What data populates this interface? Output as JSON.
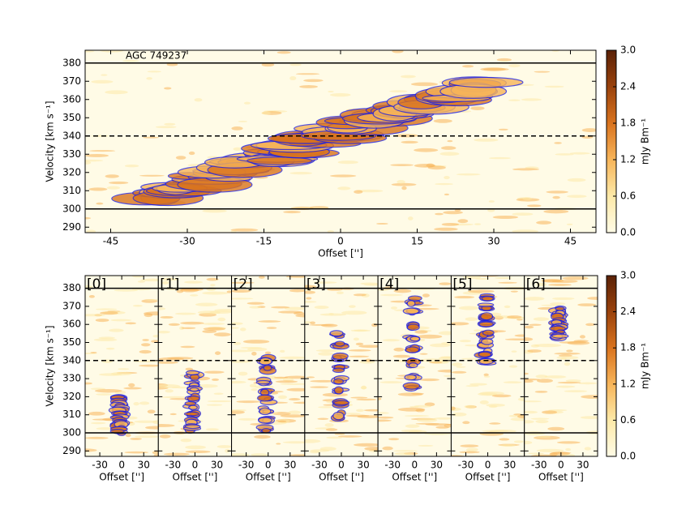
{
  "chart_data": [
    {
      "type": "heatmap",
      "title": "AGC 749237",
      "xlabel": "Offset ['']",
      "ylabel": "Velocity [km s⁻¹]",
      "xlim": [
        -50,
        50
      ],
      "ylim": [
        287,
        387
      ],
      "xticks": [
        -45,
        -30,
        -15,
        0,
        15,
        30,
        45
      ],
      "yticks": [
        290,
        300,
        310,
        320,
        330,
        340,
        350,
        360,
        370,
        380
      ],
      "hlines": [
        {
          "value": 300,
          "style": "solid"
        },
        {
          "value": 340,
          "style": "dashed"
        },
        {
          "value": 380,
          "style": "solid"
        }
      ],
      "colorbar": {
        "label": "mJy Bm⁻¹",
        "lim": [
          0,
          3
        ],
        "colors": [
          "#fffbe6",
          "#fde9a8",
          "#f7b55a",
          "#d9731e",
          "#9a420c",
          "#5a2107"
        ],
        "ticks": [
          {
            "value": 0,
            "label": "0.0"
          },
          0.6,
          1.2,
          1.8,
          2.4,
          {
            "value": 3,
            "label": "3.0"
          }
        ]
      },
      "contour_color": "#2222dd"
    },
    {
      "type": "heatmap_panels",
      "ylabel": "Velocity [km s⁻¹]",
      "ylim": [
        287,
        387
      ],
      "yticks": [
        290,
        300,
        310,
        320,
        330,
        340,
        350,
        360,
        370,
        380
      ],
      "hlines": [
        {
          "value": 300,
          "style": "solid"
        },
        {
          "value": 340,
          "style": "dashed"
        },
        {
          "value": 380,
          "style": "solid"
        }
      ],
      "colorbar": {
        "label": "mJy Bm⁻¹",
        "lim": [
          0,
          3
        ],
        "colors": [
          "#fffbe6",
          "#fde9a8",
          "#f7b55a",
          "#d9731e",
          "#9a420c",
          "#5a2107"
        ],
        "ticks": [
          {
            "value": 0,
            "label": "0.0"
          },
          0.6,
          1.2,
          1.8,
          2.4,
          {
            "value": 3,
            "label": "3.0"
          }
        ]
      },
      "contour_color": "#2222dd",
      "panels": [
        {
          "label": "[0]",
          "xlabel": "Offset ['']",
          "xlim": [
            -50,
            50
          ],
          "xticks": [
            -30,
            0,
            30
          ]
        },
        {
          "label": "[1]",
          "xlabel": "Offset ['']",
          "xlim": [
            -50,
            50
          ],
          "xticks": [
            -30,
            0,
            30
          ]
        },
        {
          "label": "[2]",
          "xlabel": "Offset ['']",
          "xlim": [
            -50,
            50
          ],
          "xticks": [
            -30,
            0,
            30
          ]
        },
        {
          "label": "[3]",
          "xlabel": "Offset ['']",
          "xlim": [
            -50,
            50
          ],
          "xticks": [
            -30,
            0,
            30
          ]
        },
        {
          "label": "[4]",
          "xlabel": "Offset ['']",
          "xlim": [
            -50,
            50
          ],
          "xticks": [
            -30,
            0,
            30
          ]
        },
        {
          "label": "[5]",
          "xlabel": "Offset ['']",
          "xlim": [
            -50,
            50
          ],
          "xticks": [
            -30,
            0,
            30
          ]
        },
        {
          "label": "[6]",
          "xlabel": "Offset ['']",
          "xlim": [
            -50,
            50
          ],
          "xticks": [
            -30,
            0,
            30
          ]
        }
      ]
    }
  ]
}
